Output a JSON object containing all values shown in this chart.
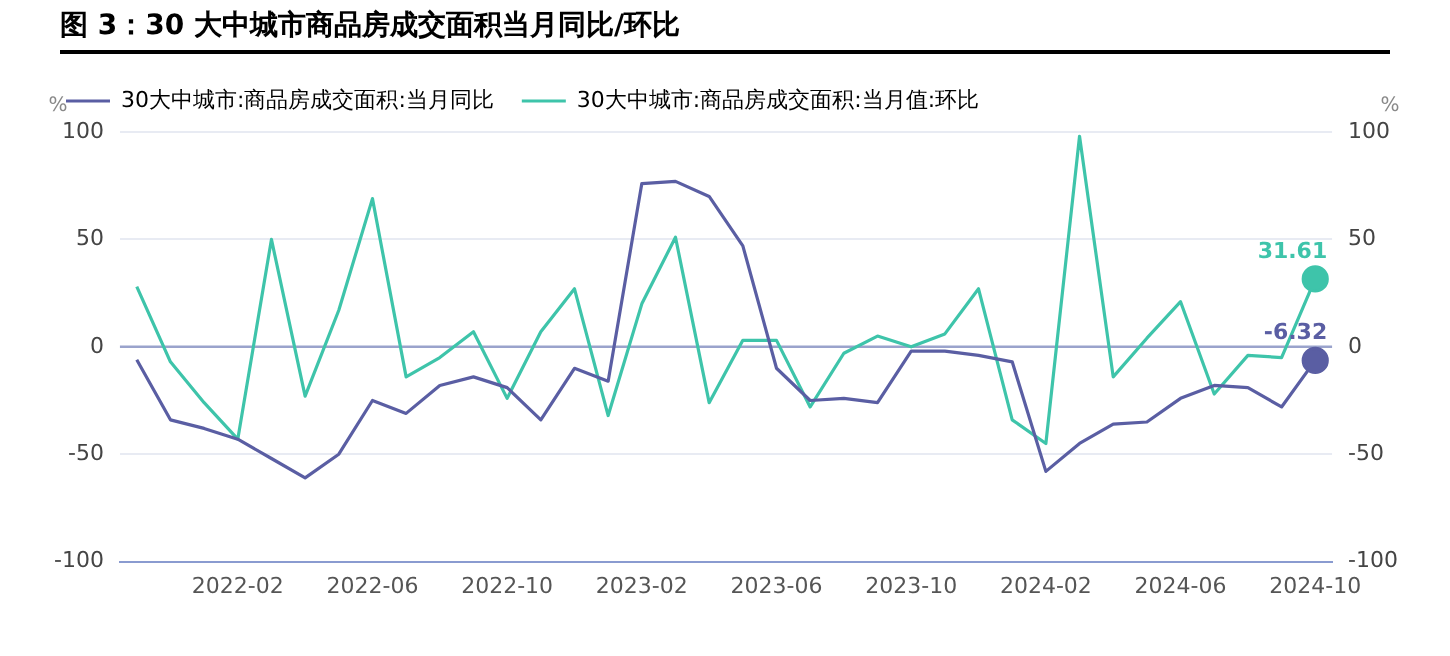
{
  "chart_data": {
    "type": "line",
    "title": "图 3：30 大中城市商品房成交面积当月同比/环比",
    "ylabel": "%",
    "y2label": "%",
    "categories": [
      null,
      null,
      null,
      "2022-02",
      null,
      null,
      null,
      "2022-06",
      null,
      null,
      null,
      "2022-10",
      null,
      null,
      null,
      "2023-02",
      null,
      null,
      null,
      "2023-06",
      null,
      null,
      null,
      "2023-10",
      null,
      null,
      null,
      "2024-02",
      null,
      null,
      null,
      "2024-06",
      null,
      null,
      null,
      "2024-10"
    ],
    "series": [
      {
        "name": "30大中城市:商品房成交面积:当月同比",
        "color": "#5a5ea3",
        "values": [
          -6,
          -34,
          -38,
          -43,
          -52,
          -61,
          -50,
          -25,
          -31,
          -18,
          -14,
          -19,
          -34,
          -10,
          -16,
          76,
          77,
          70,
          47,
          -10,
          -25,
          -24,
          -26,
          -2,
          -2,
          -4,
          -7,
          -58,
          -45,
          -36,
          -35,
          -24,
          -18,
          -19,
          -28,
          -6.32
        ],
        "value_labels": [
          null,
          null,
          null,
          null,
          null,
          null,
          null,
          null,
          null,
          null,
          null,
          null,
          null,
          null,
          null,
          null,
          null,
          null,
          null,
          null,
          null,
          null,
          null,
          null,
          null,
          null,
          null,
          null,
          null,
          null,
          null,
          null,
          null,
          null,
          null,
          "-6.32"
        ]
      },
      {
        "name": "30大中城市:商品房成交面积:当月值:环比",
        "color": "#3ec4aa",
        "values": [
          28,
          -7,
          -26,
          -43,
          50,
          -23,
          17,
          69,
          -14,
          -5,
          7,
          -24,
          7,
          27,
          -32,
          20,
          51,
          -26,
          3,
          3,
          -28,
          -3,
          5,
          0,
          6,
          27,
          -34,
          -45,
          98,
          -14,
          4,
          21,
          -22,
          -4,
          -5,
          31.61
        ],
        "value_labels": [
          null,
          null,
          null,
          null,
          null,
          null,
          null,
          null,
          null,
          null,
          null,
          null,
          null,
          null,
          null,
          null,
          null,
          null,
          null,
          null,
          null,
          null,
          null,
          null,
          null,
          null,
          null,
          null,
          null,
          null,
          null,
          null,
          null,
          null,
          null,
          "31.61"
        ]
      }
    ],
    "ylim": [
      -100,
      100
    ],
    "yticks": [
      -100,
      -50,
      0,
      50,
      100
    ],
    "y2lim": [
      -100,
      100
    ],
    "y2ticks": [
      -100,
      -50,
      0,
      50,
      100
    ],
    "ref_lines": [
      {
        "axis": "y",
        "value": 0,
        "color": "#9aa3cc"
      }
    ],
    "grid": "y",
    "legend": "top left"
  }
}
